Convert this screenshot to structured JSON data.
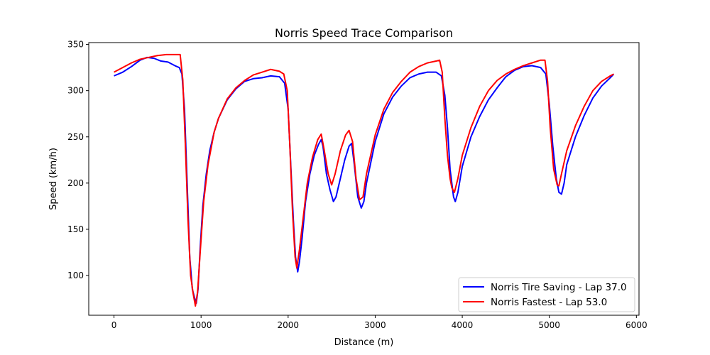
{
  "chart_data": {
    "type": "line",
    "title": "Norris Speed Trace Comparison",
    "xlabel": "Distance (m)",
    "ylabel": "Speed (km/h)",
    "xlim": [
      -290,
      6030
    ],
    "ylim": [
      57,
      352
    ],
    "xticks": [
      0,
      1000,
      2000,
      3000,
      4000,
      5000,
      6000
    ],
    "yticks": [
      100,
      150,
      200,
      250,
      300,
      350
    ],
    "grid": false,
    "legend_position": "lower-right",
    "series": [
      {
        "name": "Norris Tire Saving - Lap 37.0",
        "color": "#0000ff",
        "points": [
          [
            0,
            316
          ],
          [
            100,
            320
          ],
          [
            200,
            326
          ],
          [
            300,
            333
          ],
          [
            380,
            336
          ],
          [
            460,
            335
          ],
          [
            540,
            332
          ],
          [
            620,
            331
          ],
          [
            700,
            327
          ],
          [
            750,
            325
          ],
          [
            780,
            318
          ],
          [
            810,
            280
          ],
          [
            840,
            200
          ],
          [
            870,
            120
          ],
          [
            900,
            85
          ],
          [
            925,
            76
          ],
          [
            945,
            70
          ],
          [
            965,
            85
          ],
          [
            990,
            130
          ],
          [
            1020,
            175
          ],
          [
            1060,
            210
          ],
          [
            1100,
            235
          ],
          [
            1150,
            255
          ],
          [
            1200,
            270
          ],
          [
            1300,
            290
          ],
          [
            1400,
            302
          ],
          [
            1500,
            310
          ],
          [
            1600,
            313
          ],
          [
            1700,
            314
          ],
          [
            1800,
            316
          ],
          [
            1900,
            315
          ],
          [
            1960,
            308
          ],
          [
            2000,
            280
          ],
          [
            2030,
            220
          ],
          [
            2060,
            160
          ],
          [
            2085,
            120
          ],
          [
            2110,
            104
          ],
          [
            2130,
            115
          ],
          [
            2160,
            140
          ],
          [
            2200,
            180
          ],
          [
            2250,
            210
          ],
          [
            2300,
            230
          ],
          [
            2350,
            242
          ],
          [
            2380,
            247
          ],
          [
            2400,
            240
          ],
          [
            2440,
            210
          ],
          [
            2480,
            193
          ],
          [
            2520,
            180
          ],
          [
            2550,
            185
          ],
          [
            2600,
            205
          ],
          [
            2650,
            225
          ],
          [
            2700,
            240
          ],
          [
            2730,
            243
          ],
          [
            2760,
            220
          ],
          [
            2800,
            185
          ],
          [
            2840,
            173
          ],
          [
            2870,
            180
          ],
          [
            2900,
            200
          ],
          [
            3000,
            245
          ],
          [
            3100,
            275
          ],
          [
            3200,
            293
          ],
          [
            3300,
            305
          ],
          [
            3400,
            314
          ],
          [
            3500,
            318
          ],
          [
            3600,
            320
          ],
          [
            3700,
            320
          ],
          [
            3760,
            316
          ],
          [
            3800,
            295
          ],
          [
            3830,
            260
          ],
          [
            3860,
            215
          ],
          [
            3900,
            185
          ],
          [
            3920,
            180
          ],
          [
            3950,
            190
          ],
          [
            4000,
            218
          ],
          [
            4100,
            250
          ],
          [
            4200,
            272
          ],
          [
            4300,
            290
          ],
          [
            4400,
            303
          ],
          [
            4500,
            315
          ],
          [
            4600,
            322
          ],
          [
            4700,
            326
          ],
          [
            4800,
            327
          ],
          [
            4900,
            325
          ],
          [
            4960,
            318
          ],
          [
            5000,
            285
          ],
          [
            5040,
            240
          ],
          [
            5080,
            205
          ],
          [
            5110,
            190
          ],
          [
            5140,
            188
          ],
          [
            5170,
            200
          ],
          [
            5200,
            220
          ],
          [
            5300,
            250
          ],
          [
            5400,
            273
          ],
          [
            5500,
            292
          ],
          [
            5600,
            305
          ],
          [
            5700,
            314
          ],
          [
            5740,
            318
          ]
        ]
      },
      {
        "name": "Norris Fastest - Lap 53.0",
        "color": "#ff0000",
        "points": [
          [
            0,
            320
          ],
          [
            100,
            325
          ],
          [
            200,
            330
          ],
          [
            300,
            334
          ],
          [
            400,
            336
          ],
          [
            500,
            338
          ],
          [
            600,
            339
          ],
          [
            700,
            339
          ],
          [
            760,
            339
          ],
          [
            790,
            312
          ],
          [
            820,
            240
          ],
          [
            850,
            160
          ],
          [
            880,
            100
          ],
          [
            910,
            80
          ],
          [
            935,
            67
          ],
          [
            960,
            82
          ],
          [
            990,
            125
          ],
          [
            1030,
            180
          ],
          [
            1080,
            220
          ],
          [
            1150,
            255
          ],
          [
            1200,
            270
          ],
          [
            1300,
            291
          ],
          [
            1400,
            303
          ],
          [
            1500,
            311
          ],
          [
            1600,
            317
          ],
          [
            1700,
            320
          ],
          [
            1800,
            323
          ],
          [
            1900,
            321
          ],
          [
            1950,
            318
          ],
          [
            1990,
            300
          ],
          [
            2020,
            240
          ],
          [
            2050,
            170
          ],
          [
            2080,
            120
          ],
          [
            2100,
            108
          ],
          [
            2130,
            128
          ],
          [
            2170,
            160
          ],
          [
            2220,
            200
          ],
          [
            2280,
            228
          ],
          [
            2340,
            247
          ],
          [
            2380,
            253
          ],
          [
            2410,
            238
          ],
          [
            2460,
            210
          ],
          [
            2500,
            198
          ],
          [
            2540,
            210
          ],
          [
            2600,
            235
          ],
          [
            2660,
            252
          ],
          [
            2700,
            257
          ],
          [
            2740,
            245
          ],
          [
            2780,
            205
          ],
          [
            2820,
            182
          ],
          [
            2860,
            185
          ],
          [
            2900,
            210
          ],
          [
            3000,
            252
          ],
          [
            3100,
            280
          ],
          [
            3200,
            298
          ],
          [
            3300,
            310
          ],
          [
            3400,
            320
          ],
          [
            3500,
            326
          ],
          [
            3600,
            330
          ],
          [
            3700,
            332
          ],
          [
            3740,
            333
          ],
          [
            3770,
            320
          ],
          [
            3800,
            270
          ],
          [
            3830,
            230
          ],
          [
            3860,
            205
          ],
          [
            3880,
            195
          ],
          [
            3910,
            190
          ],
          [
            3950,
            205
          ],
          [
            4000,
            230
          ],
          [
            4100,
            260
          ],
          [
            4200,
            283
          ],
          [
            4300,
            300
          ],
          [
            4400,
            311
          ],
          [
            4500,
            318
          ],
          [
            4600,
            323
          ],
          [
            4700,
            327
          ],
          [
            4800,
            330
          ],
          [
            4900,
            333
          ],
          [
            4950,
            333
          ],
          [
            4980,
            310
          ],
          [
            5010,
            260
          ],
          [
            5050,
            215
          ],
          [
            5090,
            198
          ],
          [
            5110,
            197
          ],
          [
            5140,
            210
          ],
          [
            5200,
            235
          ],
          [
            5300,
            262
          ],
          [
            5400,
            283
          ],
          [
            5500,
            300
          ],
          [
            5600,
            310
          ],
          [
            5700,
            316
          ],
          [
            5740,
            318
          ]
        ]
      }
    ]
  }
}
